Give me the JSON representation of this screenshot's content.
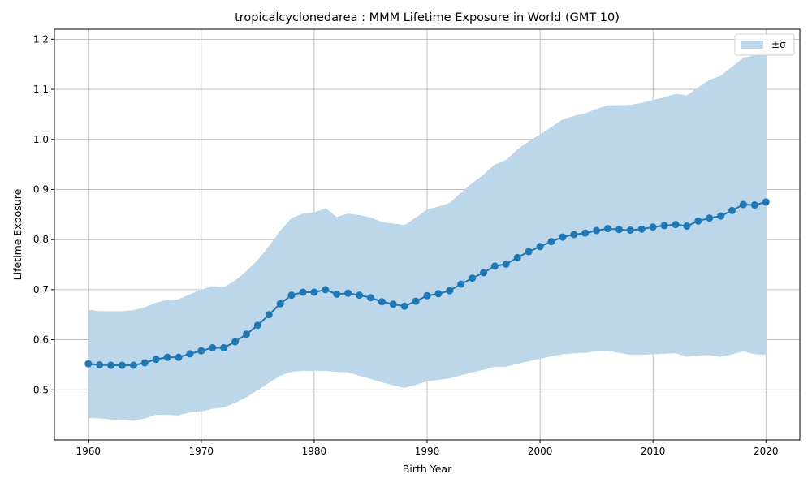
{
  "chart_data": {
    "type": "line",
    "title": "tropicalcyclonedarea : MMM Lifetime Exposure in World (GMT 10)",
    "xlabel": "Birth Year",
    "ylabel": "Lifetime Exposure",
    "xlim": [
      1957,
      2023
    ],
    "ylim": [
      0.4,
      1.22
    ],
    "x_ticks": [
      1960,
      1970,
      1980,
      1990,
      2000,
      2010,
      2020
    ],
    "y_ticks": [
      0.5,
      0.6,
      0.7,
      0.8,
      0.9,
      1.0,
      1.1,
      1.2
    ],
    "x_tick_labels": [
      "1960",
      "1970",
      "1980",
      "1990",
      "2000",
      "2010",
      "2020"
    ],
    "y_tick_labels": [
      "0.5",
      "0.6",
      "0.7",
      "0.8",
      "0.9",
      "1.0",
      "1.1",
      "1.2"
    ],
    "grid": true,
    "legend_position": "top-right",
    "band_label": "±σ",
    "colors": {
      "line": "#1f77b4",
      "band": "#bcd6ea",
      "grid": "#b0b0b0"
    },
    "x": [
      1960,
      1961,
      1962,
      1963,
      1964,
      1965,
      1966,
      1967,
      1968,
      1969,
      1970,
      1971,
      1972,
      1973,
      1974,
      1975,
      1976,
      1977,
      1978,
      1979,
      1980,
      1981,
      1982,
      1983,
      1984,
      1985,
      1986,
      1987,
      1988,
      1989,
      1990,
      1991,
      1992,
      1993,
      1994,
      1995,
      1996,
      1997,
      1998,
      1999,
      2000,
      2001,
      2002,
      2003,
      2004,
      2005,
      2006,
      2007,
      2008,
      2009,
      2010,
      2011,
      2012,
      2013,
      2014,
      2015,
      2016,
      2017,
      2018,
      2019,
      2020
    ],
    "mean": [
      0.552,
      0.55,
      0.549,
      0.549,
      0.549,
      0.554,
      0.561,
      0.565,
      0.565,
      0.572,
      0.578,
      0.584,
      0.584,
      0.596,
      0.611,
      0.629,
      0.65,
      0.672,
      0.689,
      0.695,
      0.695,
      0.7,
      0.691,
      0.693,
      0.689,
      0.684,
      0.676,
      0.671,
      0.667,
      0.677,
      0.688,
      0.692,
      0.698,
      0.711,
      0.723,
      0.734,
      0.747,
      0.751,
      0.764,
      0.776,
      0.786,
      0.796,
      0.805,
      0.81,
      0.813,
      0.818,
      0.822,
      0.82,
      0.819,
      0.821,
      0.825,
      0.828,
      0.83,
      0.827,
      0.837,
      0.843,
      0.847,
      0.858,
      0.87,
      0.869,
      0.875
    ],
    "upper": [
      0.66,
      0.657,
      0.657,
      0.657,
      0.659,
      0.665,
      0.674,
      0.68,
      0.681,
      0.691,
      0.7,
      0.707,
      0.705,
      0.718,
      0.737,
      0.759,
      0.787,
      0.818,
      0.843,
      0.852,
      0.854,
      0.863,
      0.845,
      0.852,
      0.849,
      0.844,
      0.835,
      0.832,
      0.829,
      0.844,
      0.86,
      0.866,
      0.873,
      0.894,
      0.913,
      0.93,
      0.95,
      0.959,
      0.98,
      0.996,
      1.01,
      1.025,
      1.04,
      1.047,
      1.052,
      1.061,
      1.068,
      1.068,
      1.069,
      1.073,
      1.079,
      1.084,
      1.091,
      1.088,
      1.104,
      1.119,
      1.127,
      1.145,
      1.163,
      1.168,
      1.18
    ],
    "lower": [
      0.444,
      0.443,
      0.441,
      0.44,
      0.438,
      0.443,
      0.45,
      0.45,
      0.449,
      0.455,
      0.457,
      0.462,
      0.465,
      0.474,
      0.485,
      0.499,
      0.514,
      0.528,
      0.536,
      0.538,
      0.538,
      0.538,
      0.536,
      0.535,
      0.528,
      0.522,
      0.515,
      0.509,
      0.504,
      0.51,
      0.517,
      0.52,
      0.523,
      0.529,
      0.535,
      0.54,
      0.546,
      0.546,
      0.552,
      0.557,
      0.562,
      0.567,
      0.571,
      0.573,
      0.574,
      0.577,
      0.578,
      0.574,
      0.57,
      0.57,
      0.571,
      0.572,
      0.573,
      0.566,
      0.569,
      0.569,
      0.566,
      0.571,
      0.577,
      0.571,
      0.57
    ]
  }
}
